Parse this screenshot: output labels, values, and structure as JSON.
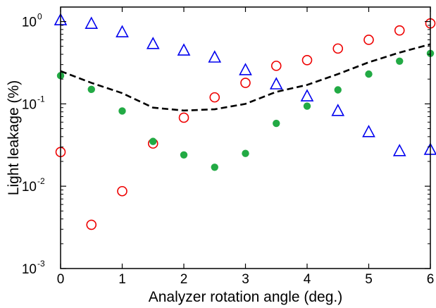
{
  "chart_data": {
    "type": "scatter",
    "title": "",
    "xlabel": "Analyzer rotation angle  (deg.)",
    "ylabel": "Light leakage (%)",
    "xlim": [
      0,
      6
    ],
    "ylim": [
      0.001,
      1.5
    ],
    "yscale": "log",
    "grid": false,
    "legend": "none",
    "x_ticks": [
      "0",
      "1",
      "2",
      "3",
      "4",
      "5",
      "6"
    ],
    "y_ticks": [
      {
        "base": "10",
        "exp": "0",
        "value": 1
      },
      {
        "base": "10",
        "exp": "-1",
        "value": 0.1
      },
      {
        "base": "10",
        "exp": "-2",
        "value": 0.01
      },
      {
        "base": "10",
        "exp": "-3",
        "value": 0.001
      }
    ],
    "series": [
      {
        "marker": "triangle-open",
        "color": "#0000ee",
        "x": [
          0,
          0.5,
          1,
          1.5,
          2,
          2.5,
          3,
          3.5,
          4,
          4.5,
          5,
          5.5,
          6
        ],
        "y": [
          1.05,
          0.95,
          0.75,
          0.54,
          0.45,
          0.37,
          0.26,
          0.175,
          0.125,
          0.083,
          0.046,
          0.027,
          0.028
        ]
      },
      {
        "marker": "circle-open",
        "color": "#ee0000",
        "x": [
          0,
          0.5,
          1,
          1.5,
          2,
          2.5,
          3,
          3.5,
          4,
          4.5,
          5,
          5.5,
          6
        ],
        "y": [
          0.026,
          0.0034,
          0.0087,
          0.033,
          0.068,
          0.12,
          0.18,
          0.29,
          0.34,
          0.47,
          0.6,
          0.78,
          0.95
        ]
      },
      {
        "marker": "circle-filled",
        "color": "#22aa44",
        "x": [
          0,
          0.5,
          1,
          1.5,
          2,
          2.5,
          3,
          3.5,
          4,
          4.5,
          5,
          5.5,
          6
        ],
        "y": [
          0.22,
          0.15,
          0.082,
          0.035,
          0.024,
          0.017,
          0.025,
          0.058,
          0.094,
          0.148,
          0.23,
          0.33,
          0.41
        ]
      },
      {
        "marker": "dashed-line",
        "color": "#000000",
        "x": [
          0,
          0.5,
          1,
          1.5,
          2,
          2.5,
          3,
          3.5,
          4,
          4.5,
          5,
          5.5,
          6
        ],
        "y": [
          0.25,
          0.18,
          0.135,
          0.09,
          0.083,
          0.086,
          0.1,
          0.14,
          0.17,
          0.23,
          0.32,
          0.42,
          0.53
        ]
      }
    ]
  }
}
